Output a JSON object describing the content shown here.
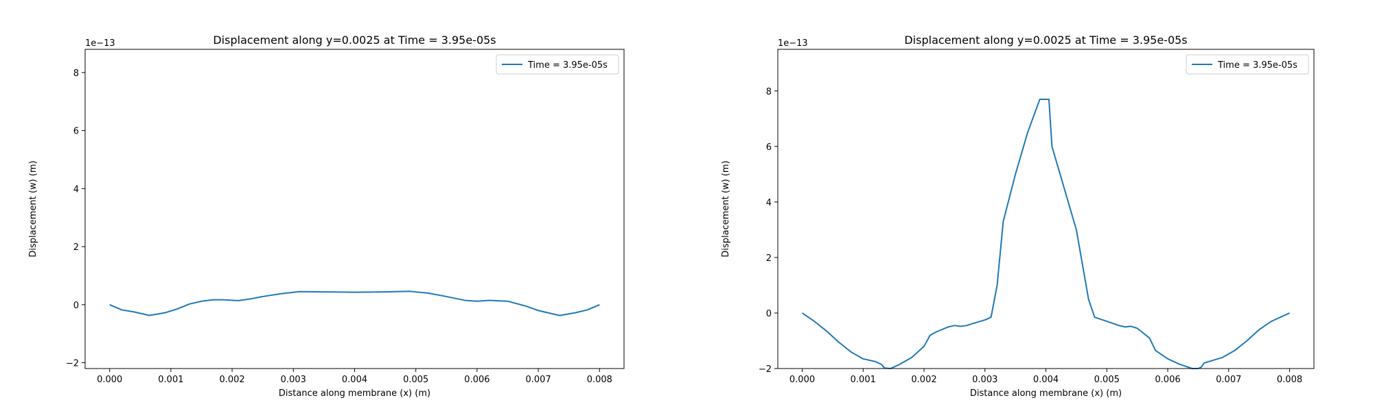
{
  "colors": {
    "series": "#1f77b4",
    "axes": "#000000",
    "background": "#ffffff"
  },
  "chart_data": [
    {
      "type": "line",
      "title": "Displacement along y=0.0025 at Time = 3.95e-05s",
      "xlabel": "Distance along membrane (x) (m)",
      "ylabel": "Displacement (w) (m)",
      "y_scale_label": "1e−13",
      "xlim": [
        -0.0004,
        0.0084
      ],
      "ylim": [
        -2.2,
        8.8
      ],
      "xticks": [
        0.0,
        0.001,
        0.002,
        0.003,
        0.004,
        0.005,
        0.006,
        0.007,
        0.008
      ],
      "xtick_labels": [
        "0.000",
        "0.001",
        "0.002",
        "0.003",
        "0.004",
        "0.005",
        "0.006",
        "0.007",
        "0.008"
      ],
      "yticks": [
        -2,
        0,
        2,
        4,
        6,
        8
      ],
      "ytick_labels": [
        "−2",
        "0",
        "2",
        "4",
        "6",
        "8"
      ],
      "legend": {
        "position": "upper-right"
      },
      "series": [
        {
          "name": "Time = 3.95e-05s",
          "x": [
            0.0,
            0.0002,
            0.0004,
            0.00065,
            0.0009,
            0.0011,
            0.0013,
            0.0015,
            0.0017,
            0.00185,
            0.0021,
            0.0023,
            0.0025,
            0.0028,
            0.0031,
            0.0035,
            0.004,
            0.0045,
            0.0049,
            0.0052,
            0.0055,
            0.0058,
            0.006,
            0.0062,
            0.0065,
            0.0068,
            0.007,
            0.0072,
            0.00735,
            0.0076,
            0.0078,
            0.008
          ],
          "y": [
            0.0,
            -0.18,
            -0.25,
            -0.37,
            -0.28,
            -0.15,
            0.02,
            0.12,
            0.17,
            0.17,
            0.14,
            0.2,
            0.28,
            0.38,
            0.45,
            0.44,
            0.43,
            0.44,
            0.46,
            0.4,
            0.28,
            0.15,
            0.12,
            0.15,
            0.12,
            -0.05,
            -0.2,
            -0.3,
            -0.37,
            -0.28,
            -0.18,
            0.0
          ]
        }
      ]
    },
    {
      "type": "line",
      "title": "Displacement along y=0.0025 at Time = 3.95e-05s",
      "xlabel": "Distance along membrane (x) (m)",
      "ylabel": "Displacement (w) (m)",
      "y_scale_label": "1e−13",
      "xlim": [
        -0.0004,
        0.0084
      ],
      "ylim": [
        -2.0,
        9.5
      ],
      "xticks": [
        0.0,
        0.001,
        0.002,
        0.003,
        0.004,
        0.005,
        0.006,
        0.007,
        0.008
      ],
      "xtick_labels": [
        "0.000",
        "0.001",
        "0.002",
        "0.003",
        "0.004",
        "0.005",
        "0.006",
        "0.007",
        "0.008"
      ],
      "yticks": [
        -2,
        0,
        2,
        4,
        6,
        8
      ],
      "ytick_labels": [
        "−2",
        "0",
        "2",
        "4",
        "6",
        "8"
      ],
      "legend": {
        "position": "upper-right"
      },
      "series": [
        {
          "name": "Time = 3.95e-05s",
          "x": [
            0.0,
            0.0002,
            0.0004,
            0.0006,
            0.0008,
            0.001,
            0.0012,
            0.0013,
            0.00135,
            0.00145,
            0.0016,
            0.0018,
            0.002,
            0.0021,
            0.0022,
            0.0024,
            0.0025,
            0.0026,
            0.0027,
            0.0028,
            0.003,
            0.0031,
            0.0032,
            0.0033,
            0.0035,
            0.0037,
            0.0039,
            0.00395,
            0.00405,
            0.0041,
            0.0043,
            0.0045,
            0.0047,
            0.0048,
            0.005,
            0.0052,
            0.0053,
            0.0054,
            0.0055,
            0.0057,
            0.0058,
            0.006,
            0.0062,
            0.0064,
            0.0065,
            0.00655,
            0.0066,
            0.00675,
            0.0069,
            0.0071,
            0.0073,
            0.0075,
            0.0077,
            0.008
          ],
          "y": [
            0.0,
            -0.3,
            -0.65,
            -1.05,
            -1.4,
            -1.65,
            -1.75,
            -1.85,
            -1.98,
            -2.0,
            -1.85,
            -1.6,
            -1.2,
            -0.8,
            -0.68,
            -0.5,
            -0.45,
            -0.48,
            -0.45,
            -0.38,
            -0.25,
            -0.15,
            1.0,
            3.3,
            5.0,
            6.5,
            7.7,
            7.7,
            7.7,
            6.0,
            4.5,
            3.0,
            0.5,
            -0.15,
            -0.3,
            -0.45,
            -0.5,
            -0.48,
            -0.55,
            -0.9,
            -1.35,
            -1.65,
            -1.85,
            -2.0,
            -2.0,
            -1.95,
            -1.8,
            -1.7,
            -1.6,
            -1.35,
            -1.0,
            -0.6,
            -0.3,
            0.0
          ]
        }
      ]
    }
  ]
}
